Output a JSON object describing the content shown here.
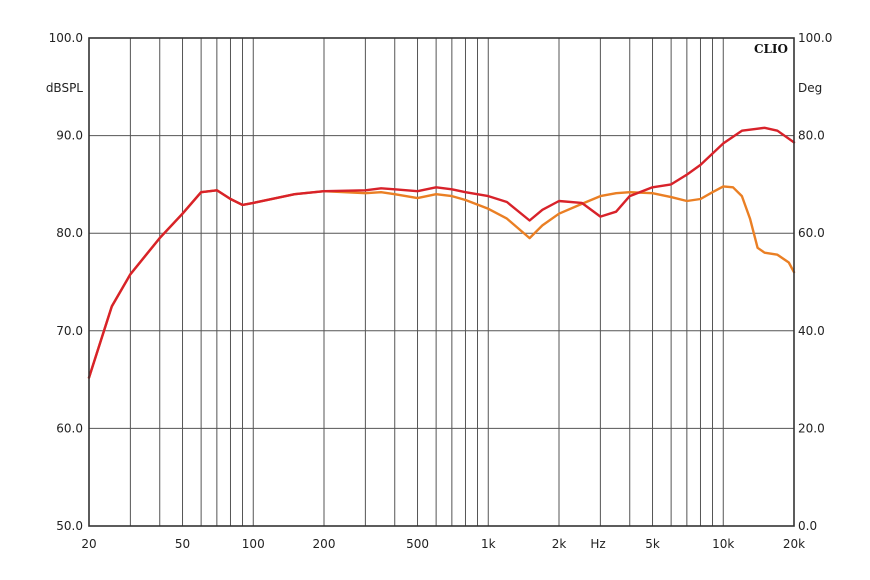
{
  "chart_data": {
    "type": "line",
    "brand": "CLIO",
    "xscale": "log",
    "xlim": [
      20,
      20000
    ],
    "ylim": [
      50,
      100
    ],
    "y2lim": [
      0,
      100
    ],
    "grid": true,
    "y_left_unit": "dBSPL",
    "y_right_unit": "Deg",
    "x_unit": "Hz",
    "x_tick_labels": [
      {
        "v": 20,
        "label": "20"
      },
      {
        "v": 50,
        "label": "50"
      },
      {
        "v": 100,
        "label": "100"
      },
      {
        "v": 200,
        "label": "200"
      },
      {
        "v": 500,
        "label": "500"
      },
      {
        "v": 1000,
        "label": "1k"
      },
      {
        "v": 2000,
        "label": "2k"
      },
      {
        "v": 5000,
        "label": "5k"
      },
      {
        "v": 10000,
        "label": "10k"
      },
      {
        "v": 20000,
        "label": "20k"
      }
    ],
    "y_tick_labels": [
      "50.0",
      "60.0",
      "70.0",
      "80.0",
      "90.0",
      "100.0"
    ],
    "y2_tick_labels": [
      "0.0",
      "20.0",
      "40.0",
      "60.0",
      "80.0",
      "100.0"
    ],
    "series": [
      {
        "color": "#d8222a",
        "x": [
          20,
          25,
          30,
          40,
          50,
          60,
          70,
          80,
          90,
          100,
          150,
          200,
          300,
          350,
          400,
          500,
          600,
          700,
          800,
          1000,
          1200,
          1500,
          1700,
          2000,
          2500,
          3000,
          3500,
          4000,
          5000,
          6000,
          7000,
          8000,
          10000,
          12000,
          15000,
          17000,
          20000
        ],
        "y": [
          65.2,
          72.5,
          75.8,
          79.5,
          82.0,
          84.2,
          84.4,
          83.5,
          82.9,
          83.1,
          84.0,
          84.3,
          84.4,
          84.6,
          84.5,
          84.3,
          84.7,
          84.5,
          84.2,
          83.8,
          83.2,
          81.3,
          82.4,
          83.3,
          83.1,
          81.7,
          82.2,
          83.8,
          84.7,
          85.0,
          86.0,
          87.0,
          89.2,
          90.5,
          90.8,
          90.5,
          89.3
        ]
      },
      {
        "color": "#ea7f24",
        "x": [
          20,
          25,
          30,
          40,
          50,
          60,
          70,
          80,
          90,
          100,
          150,
          200,
          300,
          350,
          400,
          500,
          600,
          700,
          800,
          1000,
          1200,
          1500,
          1700,
          2000,
          2500,
          3000,
          3500,
          4000,
          5000,
          6000,
          7000,
          8000,
          9000,
          10000,
          11000,
          12000,
          13000,
          14000,
          15000,
          17000,
          19000,
          20000
        ],
        "y": [
          65.2,
          72.5,
          75.8,
          79.5,
          82.0,
          84.2,
          84.4,
          83.5,
          82.9,
          83.1,
          84.0,
          84.3,
          84.1,
          84.2,
          84.0,
          83.6,
          84.0,
          83.8,
          83.4,
          82.5,
          81.5,
          79.5,
          80.8,
          82.0,
          83.0,
          83.8,
          84.1,
          84.2,
          84.1,
          83.7,
          83.3,
          83.5,
          84.2,
          84.8,
          84.7,
          83.8,
          81.5,
          78.5,
          78.0,
          77.8,
          77.0,
          76.0
        ]
      }
    ]
  }
}
